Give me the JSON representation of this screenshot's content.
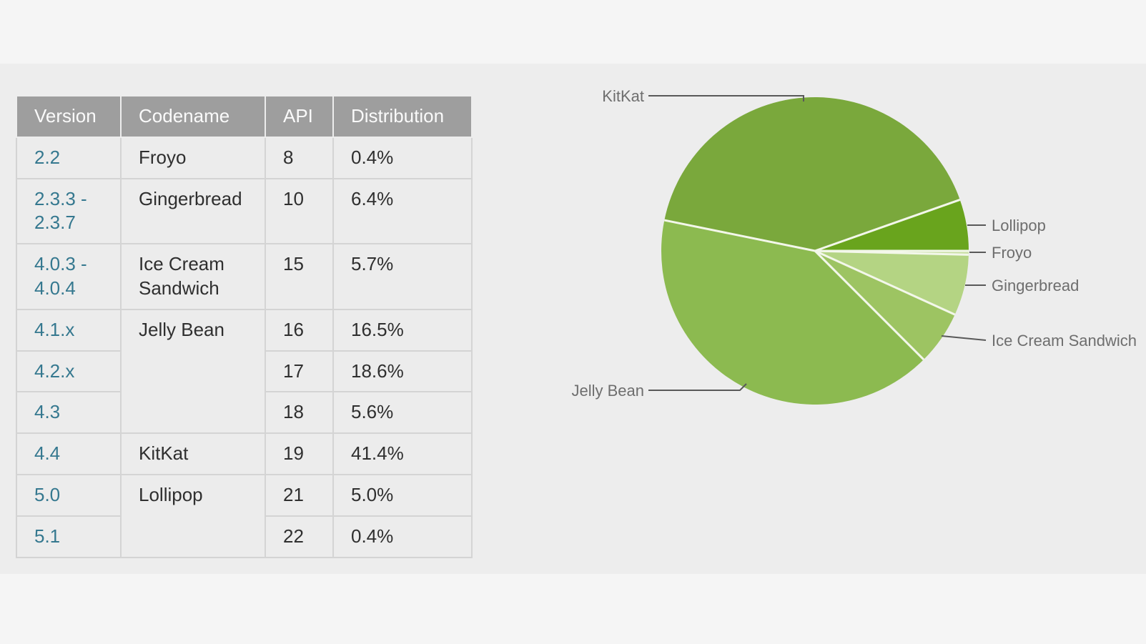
{
  "colors": {
    "outer_background": "#f5f5f5",
    "page_background": "#ededed",
    "table_header_background": "#9e9e9e",
    "table_header_text": "#fafafa",
    "table_cell_background": "#ececec",
    "table_border": "#d4d4d4",
    "version_link": "#35788f",
    "chart_label_text": "#6e6e6e",
    "leader_line": "#595959"
  },
  "table": {
    "headers": [
      "Version",
      "Codename",
      "API",
      "Distribution"
    ],
    "rows": [
      {
        "version": "2.2",
        "codename": "Froyo",
        "api": "8",
        "distribution": "0.4%"
      },
      {
        "version": "2.3.3 -\n2.3.7",
        "codename": "Gingerbread",
        "api": "10",
        "distribution": "6.4%"
      },
      {
        "version": "4.0.3 -\n4.0.4",
        "codename": "Ice Cream Sandwich",
        "api": "15",
        "distribution": "5.7%"
      },
      {
        "version": "4.1.x",
        "codename": "Jelly Bean",
        "api": "16",
        "distribution": "16.5%"
      },
      {
        "version": "4.2.x",
        "codename": "",
        "api": "17",
        "distribution": "18.6%"
      },
      {
        "version": "4.3",
        "codename": "",
        "api": "18",
        "distribution": "5.6%"
      },
      {
        "version": "4.4",
        "codename": "KitKat",
        "api": "19",
        "distribution": "41.4%"
      },
      {
        "version": "5.0",
        "codename": "Lollipop",
        "api": "21",
        "distribution": "5.0%"
      },
      {
        "version": "5.1",
        "codename": "",
        "api": "22",
        "distribution": "0.4%"
      }
    ]
  },
  "chart_data": {
    "type": "pie",
    "start_angle_deg": 0,
    "direction": "clockwise",
    "legend_position": "outside-callouts",
    "separator_color": "#f3f7ea",
    "slices": [
      {
        "label": "Froyo",
        "value": 0.4,
        "color": "#c9dfa4"
      },
      {
        "label": "Gingerbread",
        "value": 6.4,
        "color": "#b4d483"
      },
      {
        "label": "Ice Cream Sandwich",
        "value": 5.7,
        "color": "#9dc462"
      },
      {
        "label": "Jelly Bean",
        "value": 40.7,
        "color": "#8cba50"
      },
      {
        "label": "KitKat",
        "value": 41.4,
        "color": "#7aa83c"
      },
      {
        "label": "Lollipop",
        "value": 5.4,
        "color": "#69a41d"
      }
    ]
  }
}
